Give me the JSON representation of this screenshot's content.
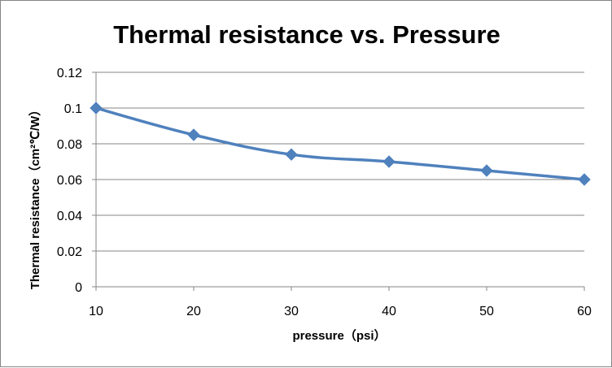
{
  "chart_data": {
    "type": "line",
    "title": "Thermal resistance vs. Pressure",
    "xlabel": "pressure（psi）",
    "ylabel": "Thermal resistance（cm²℃/W）",
    "x": [
      10,
      20,
      30,
      40,
      50,
      60
    ],
    "xticks": [
      "10",
      "20",
      "30",
      "40",
      "50",
      "60"
    ],
    "yticks": [
      "0",
      "0.02",
      "0.04",
      "0.06",
      "0.08",
      "0.1",
      "0.12"
    ],
    "ylim": [
      0,
      0.12
    ],
    "xlim": [
      10,
      60
    ],
    "grid": "horizontal",
    "legend": "none",
    "series": [
      {
        "values": [
          0.1,
          0.085,
          0.074,
          0.07,
          0.065,
          0.06
        ],
        "color": "#4F81BD",
        "marker": "diamond"
      }
    ]
  }
}
